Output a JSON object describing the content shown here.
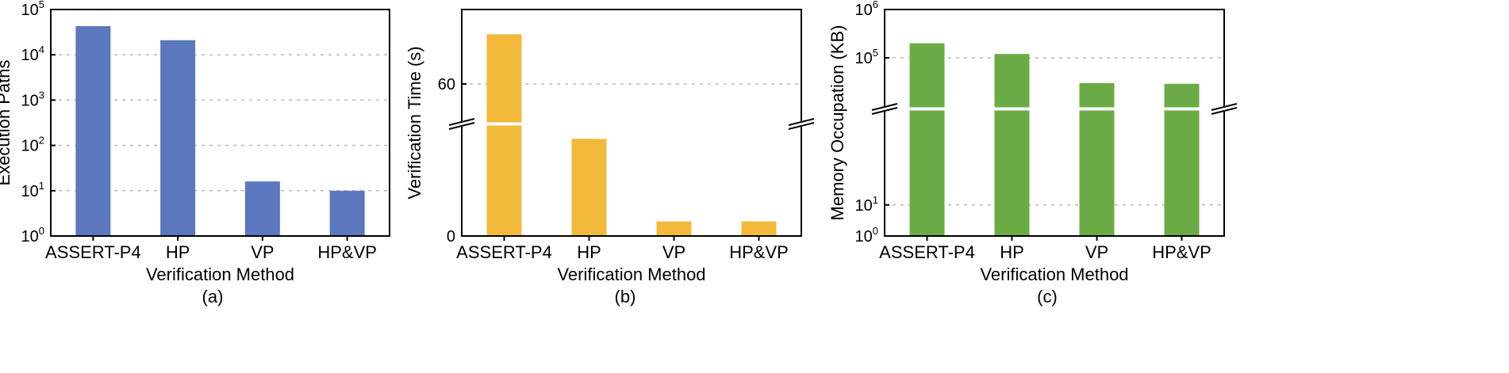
{
  "chart_data": [
    {
      "id": "a",
      "type": "bar",
      "scale": "log",
      "caption": "(a)",
      "xlabel": "Verification Method",
      "ylabel": "Execution Paths",
      "categories": [
        "ASSERT-P4",
        "HP",
        "VP",
        "HP&VP"
      ],
      "values": [
        43000,
        21000,
        16,
        10
      ],
      "ylim": [
        1,
        100000
      ],
      "yticks": [
        {
          "base": "10",
          "exp": "0",
          "value": 1
        },
        {
          "base": "10",
          "exp": "1",
          "value": 10
        },
        {
          "base": "10",
          "exp": "2",
          "value": 100
        },
        {
          "base": "10",
          "exp": "3",
          "value": 1000
        },
        {
          "base": "10",
          "exp": "4",
          "value": 10000
        },
        {
          "base": "10",
          "exp": "5",
          "value": 100000
        }
      ],
      "grid": true,
      "color": "#5b78bf"
    },
    {
      "id": "b",
      "type": "bar",
      "scale": "broken-linear",
      "caption": "(b)",
      "xlabel": "Verification Method",
      "ylabel": "Verification Time (s)",
      "categories": [
        "ASSERT-P4",
        "HP",
        "VP",
        "HP&VP"
      ],
      "values": [
        80,
        40,
        6,
        6
      ],
      "lower_range": [
        0,
        45
      ],
      "upper_range": [
        45,
        90
      ],
      "yticks": [
        {
          "label": "0",
          "value": 0
        },
        {
          "label": "60",
          "value": 60
        }
      ],
      "grid": true,
      "color": "#f2b93b"
    },
    {
      "id": "c",
      "type": "bar",
      "scale": "broken-log",
      "caption": "(c)",
      "xlabel": "Verification Method",
      "ylabel": "Memory Occupation (KB)",
      "categories": [
        "ASSERT-P4",
        "HP",
        "VP",
        "HP&VP"
      ],
      "values": [
        200000,
        120000,
        30000,
        29000
      ],
      "lower_range": [
        1,
        10000
      ],
      "upper_range": [
        10000,
        1000000
      ],
      "yticks": [
        {
          "base": "10",
          "exp": "0",
          "value": 1
        },
        {
          "base": "10",
          "exp": "1",
          "value": 10
        },
        {
          "base": "10",
          "exp": "5",
          "value": 100000
        },
        {
          "base": "10",
          "exp": "6",
          "value": 1000000
        }
      ],
      "grid": true,
      "color": "#6aab46"
    }
  ]
}
